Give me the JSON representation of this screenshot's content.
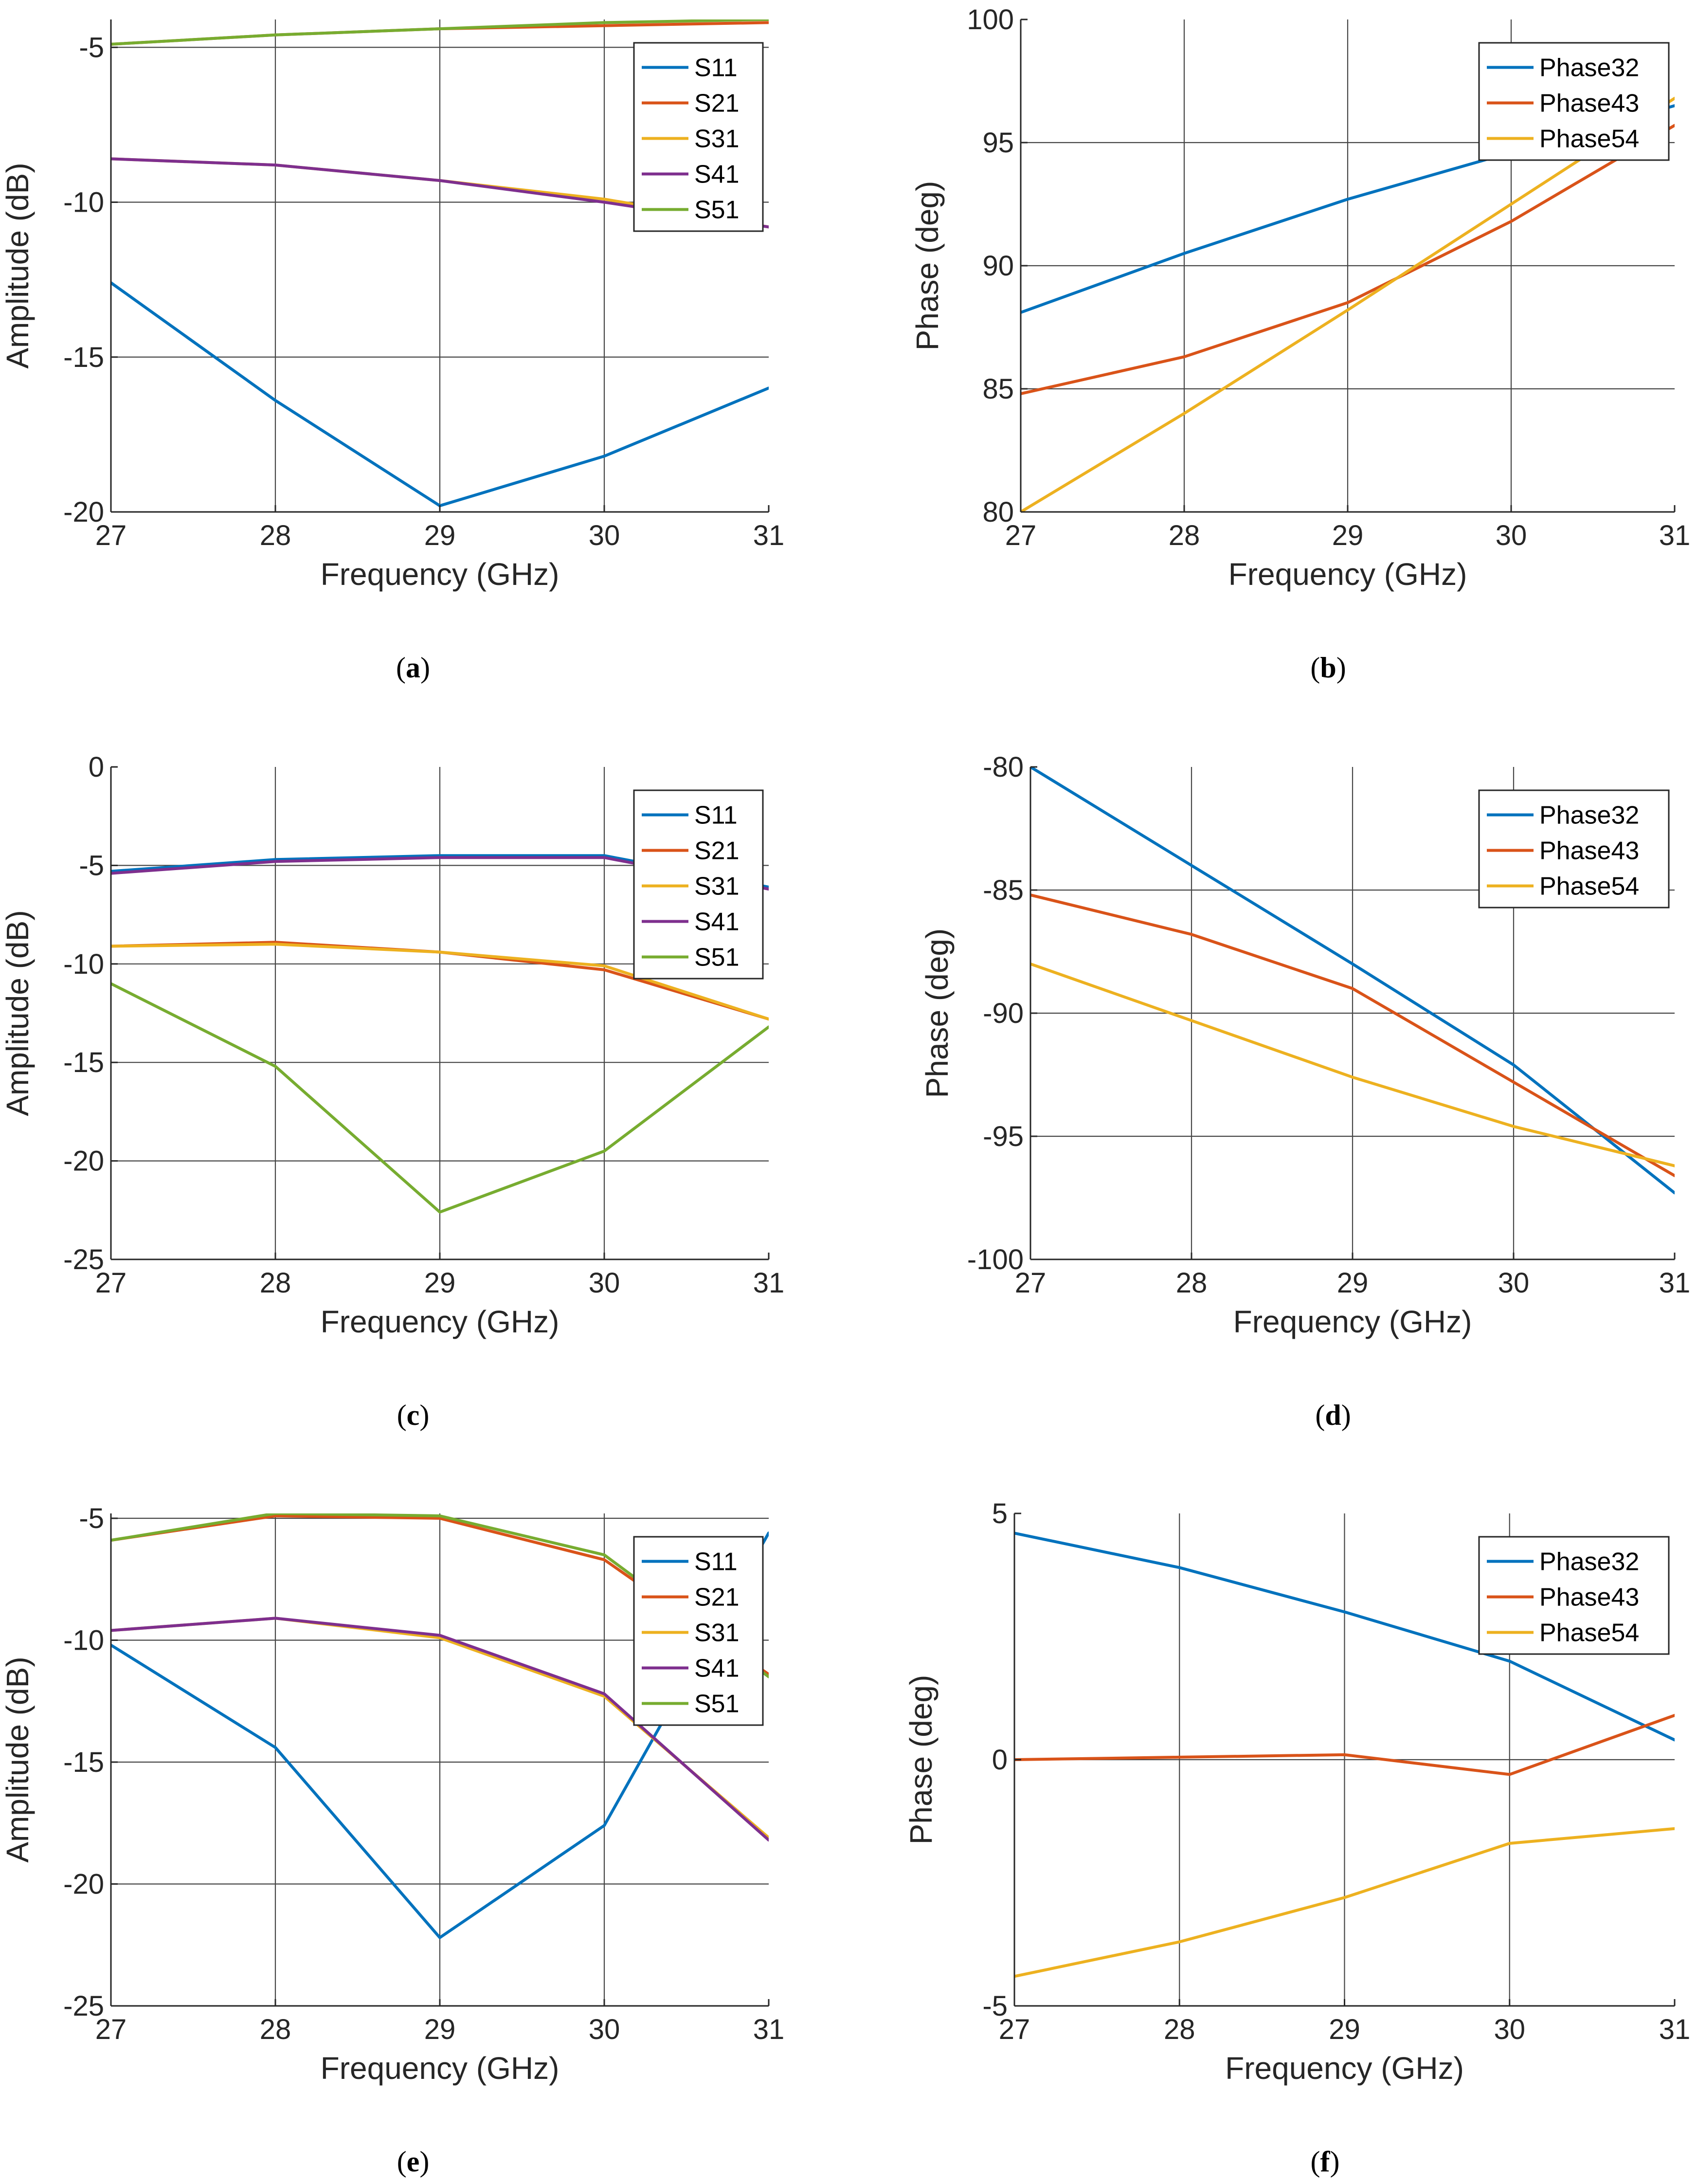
{
  "figure_title": "",
  "colors": {
    "blue": "#0072BD",
    "orange": "#D95319",
    "yellow": "#EDB120",
    "purple": "#7E2F8E",
    "green": "#77AC30"
  },
  "chart_data": [
    {
      "type": "line",
      "caption_letter": "a",
      "caption_open": "(",
      "caption_close": ")",
      "xlabel": "Frequency (GHz)",
      "ylabel": "Amplitude (dB)",
      "x": [
        27,
        28,
        29,
        30,
        31
      ],
      "xlim": [
        27,
        31
      ],
      "ylim": [
        -20,
        -4.1
      ],
      "xticks": [
        27,
        28,
        29,
        30,
        31
      ],
      "yticks": [
        -20,
        -15,
        -10,
        -5
      ],
      "grid": true,
      "legend_position": "top-right",
      "series": [
        {
          "name": "S11",
          "color": "blue",
          "values": [
            -12.6,
            -16.4,
            -19.8,
            -18.2,
            -16.0
          ]
        },
        {
          "name": "S21",
          "color": "orange",
          "values": [
            -4.9,
            -4.6,
            -4.4,
            -4.3,
            -4.2
          ]
        },
        {
          "name": "S31",
          "color": "yellow",
          "values": [
            -8.6,
            -8.8,
            -9.3,
            -9.9,
            -10.8
          ]
        },
        {
          "name": "S41",
          "color": "purple",
          "values": [
            -8.6,
            -8.8,
            -9.3,
            -10.0,
            -10.8
          ]
        },
        {
          "name": "S51",
          "color": "green",
          "values": [
            -4.9,
            -4.6,
            -4.4,
            -4.2,
            -4.1
          ]
        }
      ]
    },
    {
      "type": "line",
      "caption_letter": "b",
      "caption_open": "(",
      "caption_close": ")",
      "xlabel": "Frequency (GHz)",
      "ylabel": "Phase (deg)",
      "x": [
        27,
        28,
        29,
        30,
        31
      ],
      "xlim": [
        27,
        31
      ],
      "ylim": [
        80,
        100
      ],
      "xticks": [
        27,
        28,
        29,
        30,
        31
      ],
      "yticks": [
        80,
        85,
        90,
        95,
        100
      ],
      "grid": true,
      "legend_position": "top-right",
      "series": [
        {
          "name": "Phase32",
          "color": "blue",
          "values": [
            88.1,
            90.5,
            92.7,
            94.6,
            96.5
          ]
        },
        {
          "name": "Phase43",
          "color": "orange",
          "values": [
            84.8,
            86.3,
            88.5,
            91.8,
            95.7
          ]
        },
        {
          "name": "Phase54",
          "color": "yellow",
          "values": [
            80.0,
            84.0,
            88.2,
            92.5,
            96.8
          ]
        }
      ]
    },
    {
      "type": "line",
      "caption_letter": "c",
      "caption_open": "(",
      "caption_close": ")",
      "xlabel": "Frequency (GHz)",
      "ylabel": "Amplitude (dB)",
      "x": [
        27,
        28,
        29,
        30,
        31
      ],
      "xlim": [
        27,
        31
      ],
      "ylim": [
        -25,
        0
      ],
      "xticks": [
        27,
        28,
        29,
        30,
        31
      ],
      "yticks": [
        -25,
        -20,
        -15,
        -10,
        -5,
        0
      ],
      "grid": true,
      "legend_position": "top-right",
      "series": [
        {
          "name": "S11",
          "color": "blue",
          "values": [
            -5.3,
            -4.7,
            -4.5,
            -4.5,
            -6.1
          ]
        },
        {
          "name": "S21",
          "color": "orange",
          "values": [
            -9.1,
            -8.9,
            -9.4,
            -10.3,
            -12.8
          ]
        },
        {
          "name": "S31",
          "color": "yellow",
          "values": [
            -9.1,
            -9.0,
            -9.4,
            -10.1,
            -12.8
          ]
        },
        {
          "name": "S41",
          "color": "purple",
          "values": [
            -5.4,
            -4.8,
            -4.6,
            -4.6,
            -6.2
          ]
        },
        {
          "name": "S51",
          "color": "green",
          "values": [
            -11.0,
            -15.2,
            -22.6,
            -19.5,
            -13.2
          ]
        }
      ]
    },
    {
      "type": "line",
      "caption_letter": "d",
      "caption_open": "(",
      "caption_close": ")",
      "xlabel": "Frequency (GHz)",
      "ylabel": "Phase (deg)",
      "x": [
        27,
        28,
        29,
        30,
        31
      ],
      "xlim": [
        27,
        31
      ],
      "ylim": [
        -100,
        -80
      ],
      "xticks": [
        27,
        28,
        29,
        30,
        31
      ],
      "yticks": [
        -100,
        -95,
        -90,
        -85,
        -80
      ],
      "grid": true,
      "legend_position": "top-right",
      "series": [
        {
          "name": "Phase32",
          "color": "blue",
          "values": [
            -80.0,
            -84.0,
            -88.0,
            -92.1,
            -97.3
          ]
        },
        {
          "name": "Phase43",
          "color": "orange",
          "values": [
            -85.2,
            -86.8,
            -89.0,
            -92.8,
            -96.6
          ]
        },
        {
          "name": "Phase54",
          "color": "yellow",
          "values": [
            -88.0,
            -90.3,
            -92.6,
            -94.6,
            -96.2
          ]
        }
      ]
    },
    {
      "type": "line",
      "caption_letter": "e",
      "caption_open": "(",
      "caption_close": ")",
      "xlabel": "Frequency (GHz)",
      "ylabel": "Amplitude (dB)",
      "x": [
        27,
        28,
        29,
        30,
        31
      ],
      "xlim": [
        27,
        31
      ],
      "ylim": [
        -25,
        -4.8
      ],
      "xticks": [
        27,
        28,
        29,
        30,
        31
      ],
      "yticks": [
        -25,
        -20,
        -15,
        -10,
        -5
      ],
      "grid": true,
      "legend_position": "top-right",
      "series": [
        {
          "name": "S11",
          "color": "blue",
          "values": [
            -10.2,
            -14.4,
            -22.2,
            -17.6,
            -5.6
          ]
        },
        {
          "name": "S21",
          "color": "orange",
          "values": [
            -5.9,
            -4.9,
            -5.0,
            -6.7,
            -11.4
          ]
        },
        {
          "name": "S31",
          "color": "yellow",
          "values": [
            -9.6,
            -9.1,
            -9.9,
            -12.3,
            -18.1
          ]
        },
        {
          "name": "S41",
          "color": "purple",
          "values": [
            -9.6,
            -9.1,
            -9.8,
            -12.2,
            -18.2
          ]
        },
        {
          "name": "S51",
          "color": "green",
          "values": [
            -5.9,
            -4.8,
            -4.9,
            -6.5,
            -11.5
          ]
        }
      ]
    },
    {
      "type": "line",
      "caption_letter": "f",
      "caption_open": "(",
      "caption_close": ")",
      "xlabel": "Frequency (GHz)",
      "ylabel": "Phase (deg)",
      "x": [
        27,
        28,
        29,
        30,
        31
      ],
      "xlim": [
        27,
        31
      ],
      "ylim": [
        -5,
        5
      ],
      "xticks": [
        27,
        28,
        29,
        30,
        31
      ],
      "yticks": [
        -5,
        0,
        5
      ],
      "grid": true,
      "legend_position": "top-right",
      "series": [
        {
          "name": "Phase32",
          "color": "blue",
          "values": [
            4.6,
            3.9,
            3.0,
            2.0,
            0.4
          ]
        },
        {
          "name": "Phase43",
          "color": "orange",
          "values": [
            0.0,
            0.05,
            0.1,
            -0.3,
            0.9
          ]
        },
        {
          "name": "Phase54",
          "color": "yellow",
          "values": [
            -4.4,
            -3.7,
            -2.8,
            -1.7,
            -1.4
          ]
        }
      ]
    }
  ]
}
